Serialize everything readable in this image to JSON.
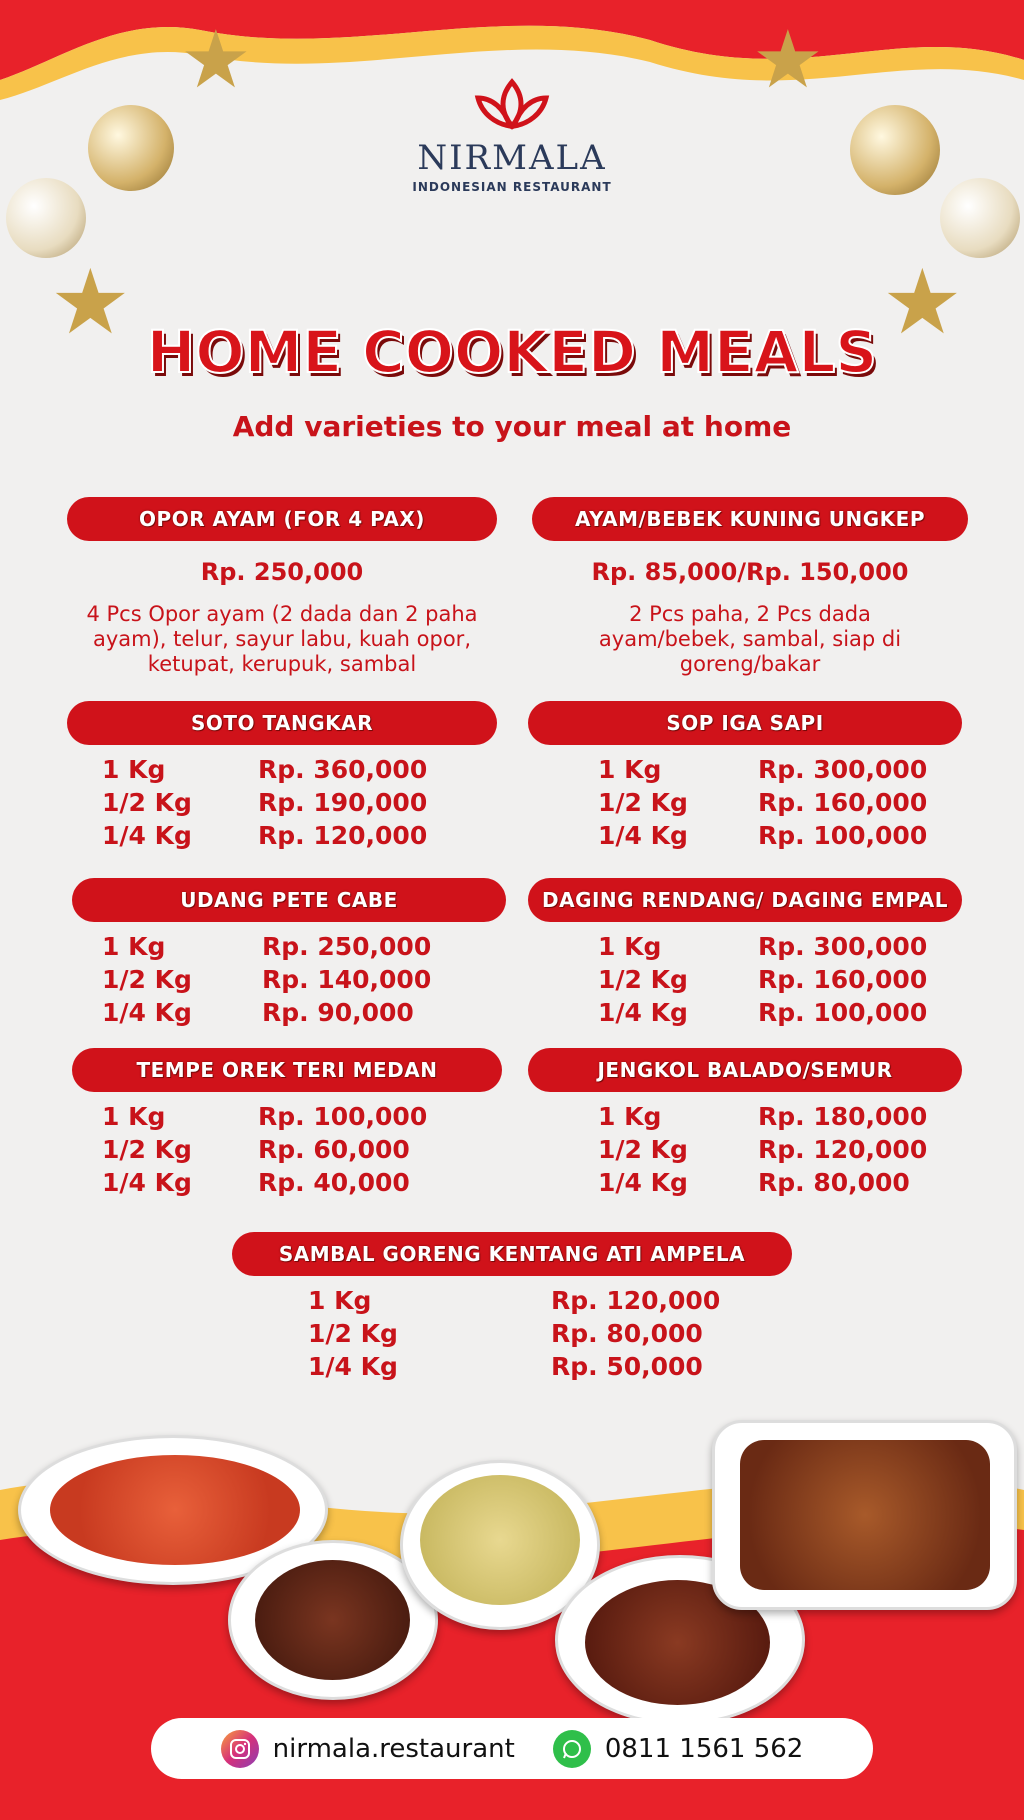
{
  "brand": {
    "name": "NIRMALA",
    "tagline": "INDONESIAN RESTAURANT"
  },
  "title": "HOME COOKED MEALS",
  "subtitle": "Add varieties to your meal at home",
  "colors": {
    "accent": "#d0121a",
    "background": "#f1f0ef",
    "bottom": "#e8222a",
    "wave": "#f8c24a"
  },
  "featured": [
    {
      "name": "OPOR AYAM (FOR 4 PAX)",
      "price": "Rp. 250,000",
      "description": "4 Pcs Opor ayam (2 dada dan 2 paha ayam), telur, sayur labu, kuah opor, ketupat, kerupuk, sambal"
    },
    {
      "name": "AYAM/BEBEK KUNING UNGKEP",
      "price": "Rp. 85,000/Rp. 150,000",
      "description": "2 Pcs paha, 2 Pcs dada ayam/bebek, sambal, siap di goreng/bakar"
    }
  ],
  "menu": [
    {
      "name": "SOTO TANGKAR",
      "rows": [
        {
          "qty": "1 Kg",
          "price": "Rp. 360,000"
        },
        {
          "qty": "1/2 Kg",
          "price": "Rp. 190,000"
        },
        {
          "qty": "1/4 Kg",
          "price": "Rp. 120,000"
        }
      ]
    },
    {
      "name": "SOP IGA SAPI",
      "rows": [
        {
          "qty": "1 Kg",
          "price": "Rp. 300,000"
        },
        {
          "qty": "1/2 Kg",
          "price": "Rp. 160,000"
        },
        {
          "qty": "1/4 Kg",
          "price": "Rp. 100,000"
        }
      ]
    },
    {
      "name": "UDANG PETE CABE",
      "rows": [
        {
          "qty": "1 Kg",
          "price": "Rp. 250,000"
        },
        {
          "qty": "1/2 Kg",
          "price": "Rp. 140,000"
        },
        {
          "qty": "1/4 Kg",
          "price": "Rp. 90,000"
        }
      ]
    },
    {
      "name": "DAGING RENDANG/ DAGING EMPAL",
      "rows": [
        {
          "qty": "1 Kg",
          "price": "Rp. 300,000"
        },
        {
          "qty": "1/2 Kg",
          "price": "Rp. 160,000"
        },
        {
          "qty": "1/4 Kg",
          "price": "Rp. 100,000"
        }
      ]
    },
    {
      "name": "TEMPE OREK TERI MEDAN",
      "rows": [
        {
          "qty": "1 Kg",
          "price": "Rp. 100,000"
        },
        {
          "qty": "1/2 Kg",
          "price": "Rp. 60,000"
        },
        {
          "qty": "1/4 Kg",
          "price": "Rp. 40,000"
        }
      ]
    },
    {
      "name": "JENGKOL BALADO/SEMUR",
      "rows": [
        {
          "qty": "1 Kg",
          "price": "Rp. 180,000"
        },
        {
          "qty": "1/2 Kg",
          "price": "Rp. 120,000"
        },
        {
          "qty": "1/4 Kg",
          "price": "Rp. 80,000"
        }
      ]
    },
    {
      "name": "SAMBAL GORENG KENTANG ATI AMPELA",
      "rows": [
        {
          "qty": "1 Kg",
          "price": "Rp. 120,000"
        },
        {
          "qty": "1/2 Kg",
          "price": "Rp. 80,000"
        },
        {
          "qty": "1/4 Kg",
          "price": "Rp. 50,000"
        }
      ]
    }
  ],
  "contact": {
    "instagram_icon": "instagram-icon",
    "instagram": "nirmala.restaurant",
    "whatsapp_icon": "whatsapp-icon",
    "phone": "0811 1561 562"
  }
}
